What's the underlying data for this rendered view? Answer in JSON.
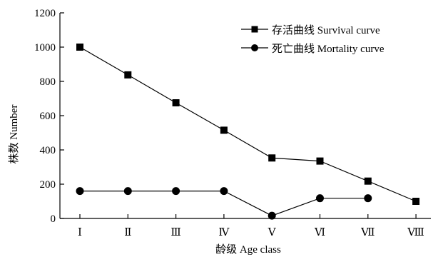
{
  "chart_data": {
    "type": "line",
    "categories": [
      "Ⅰ",
      "Ⅱ",
      "Ⅲ",
      "Ⅳ",
      "Ⅴ",
      "Ⅵ",
      "Ⅶ",
      "Ⅷ"
    ],
    "series": [
      {
        "name": "存活曲线 Survival curve",
        "marker": "square",
        "values": [
          1000,
          838,
          675,
          515,
          353,
          335,
          218,
          100
        ]
      },
      {
        "name": "死亡曲线 Mortality curve",
        "marker": "circle",
        "values": [
          160,
          160,
          160,
          160,
          16,
          118,
          118,
          null
        ]
      }
    ],
    "xlabel": "龄级 Age class",
    "ylabel": "株数 Number",
    "ylim": [
      0,
      1200
    ],
    "yticks": [
      0,
      200,
      400,
      600,
      800,
      1000,
      1200
    ],
    "grid": false,
    "legend_position": "top-right",
    "line_color": "#000000"
  }
}
